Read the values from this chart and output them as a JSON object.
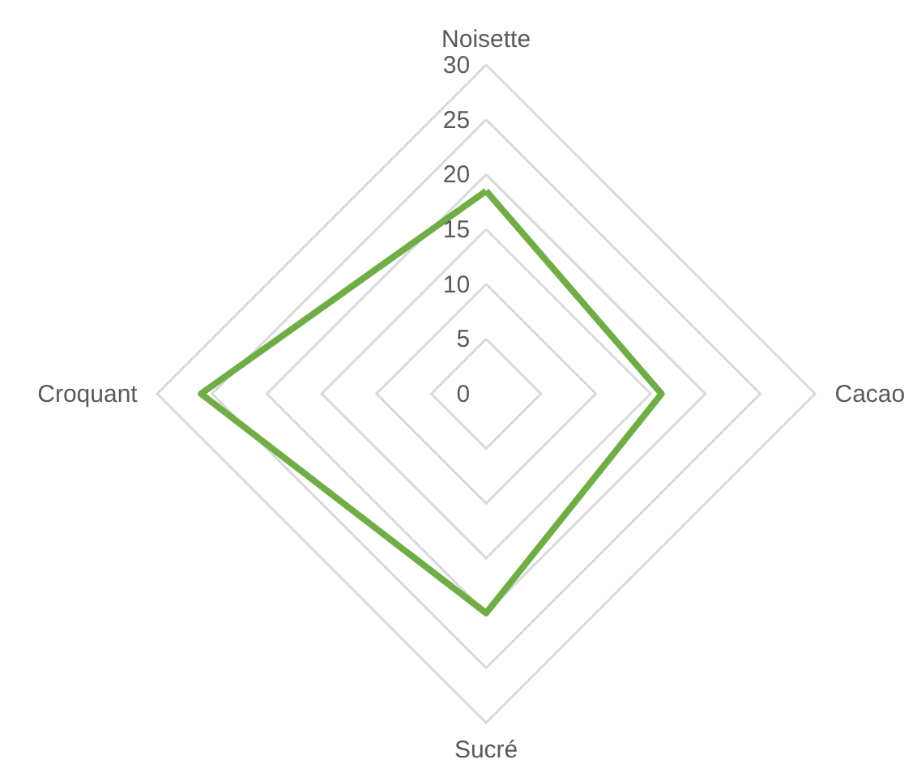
{
  "chart_data": {
    "type": "radar",
    "categories": [
      "Noisette",
      "Cacao",
      "Sucré",
      "Croquant"
    ],
    "series": [
      {
        "color": "#70ad47",
        "values": [
          18.5,
          16,
          20,
          26
        ]
      }
    ],
    "ylim": [
      0,
      30
    ],
    "yticks": [
      0,
      5,
      10,
      15,
      20,
      25,
      30
    ],
    "grid": true
  }
}
